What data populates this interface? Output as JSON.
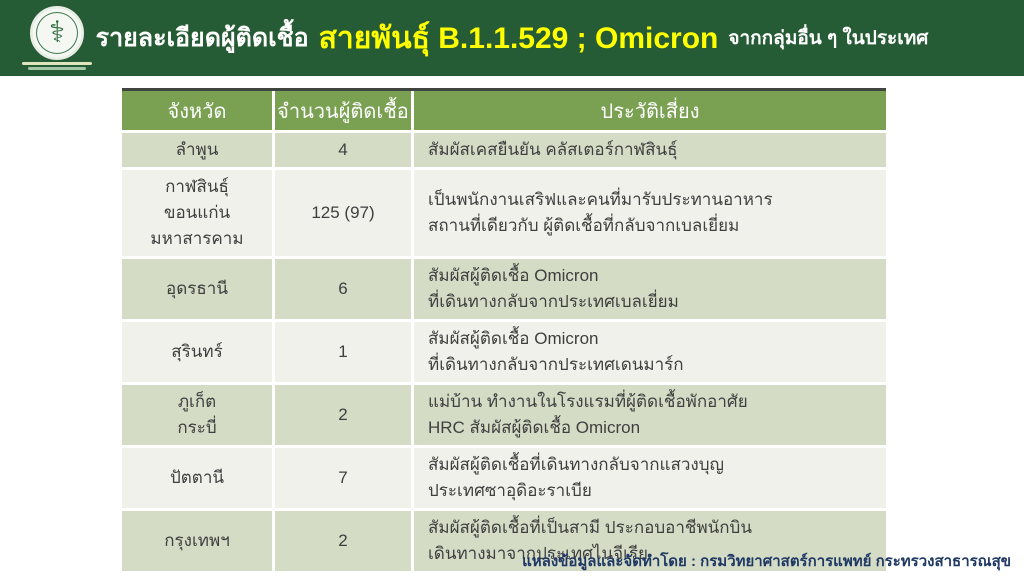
{
  "banner": {
    "title_prefix": "รายละเอียดผู้ติดเชื้อ",
    "title_highlight": "สายพันธุ์ B.1.1.529 ; Omicron",
    "title_suffix": "จากกลุ่มอื่น ๆ ในประเทศ"
  },
  "logo": {
    "icon": "caduceus-emblem",
    "glyph": "⚕"
  },
  "table": {
    "columns": [
      "จังหวัด",
      "จำนวนผู้ติดเชื้อ",
      "ประวัติเสี่ยง"
    ],
    "rows": [
      {
        "province": [
          "ลำพูน"
        ],
        "count": "4",
        "history": [
          "สัมผัสเคสยืนยัน คลัสเตอร์กาฬสินธุ์"
        ]
      },
      {
        "province": [
          "กาฬสินธุ์",
          "ขอนแก่น",
          "มหาสารคาม"
        ],
        "count": "125 (97)",
        "history": [
          "เป็นพนักงานเสริฟและคนที่มารับประทานอาหาร",
          "สถานที่เดียวกับ ผู้ติดเชื้อที่กลับจากเบลเยี่ยม"
        ]
      },
      {
        "province": [
          "อุดรธานี"
        ],
        "count": "6",
        "history": [
          "สัมผัสผู้ติดเชื้อ Omicron",
          "ที่เดินทางกลับจากประเทศเบลเยี่ยม"
        ]
      },
      {
        "province": [
          "สุรินทร์"
        ],
        "count": "1",
        "history": [
          "สัมผัสผู้ติดเชื้อ Omicron",
          "ที่เดินทางกลับจากประเทศเดนมาร์ก"
        ]
      },
      {
        "province": [
          "ภูเก็ต",
          "กระบี่"
        ],
        "count": "2",
        "history": [
          "แม่บ้าน ทำงานในโรงแรมที่ผู้ติดเชื้อพักอาศัย",
          "HRC สัมผัสผู้ติดเชื้อ Omicron"
        ]
      },
      {
        "province": [
          "ปัตตานี"
        ],
        "count": "7",
        "history": [
          "สัมผัสผู้ติดเชื้อที่เดินทางกลับจากแสวงบุญ",
          "ประเทศซาอุดิอะราเบีย"
        ]
      },
      {
        "province": [
          "กรุงเทพฯ"
        ],
        "count": "2",
        "history": [
          "สัมผัสผู้ติดเชื้อที่เป็นสามี ประกอบอาชีพนักบิน",
          "เดินทางมาจากประเทศไนจีเรีย"
        ]
      }
    ]
  },
  "footer": {
    "source": "แหล่งข้อมูลและจัดทำโดย : กรมวิทยาศาสตร์การแพทย์  กระทรวงสาธารณสุข"
  },
  "colors": {
    "banner_bg": "#265c35",
    "title_highlight": "#ffff00",
    "table_header_bg": "#7aa152",
    "row_green": "#d4dcc6",
    "row_light": "#eff1ea",
    "footer_text": "#1f3864"
  }
}
